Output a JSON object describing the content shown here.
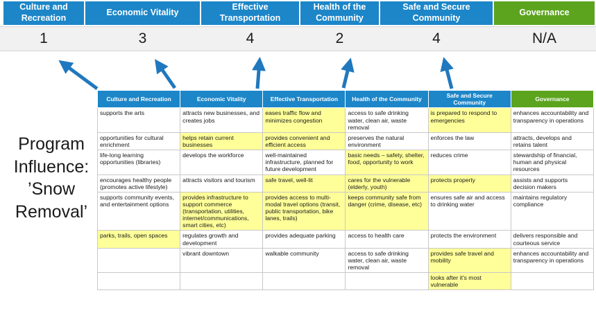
{
  "colors": {
    "header_blue": "#1C86C8",
    "header_green": "#5CA41E",
    "highlight": "#FFFF99",
    "arrow": "#2078BE",
    "score_bg": "#F1F1F1"
  },
  "title": {
    "text": "Program Influence: ’Snow Removal’"
  },
  "banner": {
    "columns": [
      {
        "id": "culture-recreation",
        "label": "Culture and Recreation",
        "score": "1"
      },
      {
        "id": "economic-vitality",
        "label": "Economic Vitality",
        "score": "3"
      },
      {
        "id": "effective-transportation",
        "label": "Effective Transportation",
        "score": "4"
      },
      {
        "id": "health-community",
        "label": "Health of the Community",
        "score": "2"
      },
      {
        "id": "safe-secure-community",
        "label": "Safe and Secure Community",
        "score": "4"
      },
      {
        "id": "governance",
        "label": "Governance",
        "score": "N/A"
      }
    ]
  },
  "table": {
    "headers": [
      "Culture and Recreation",
      "Economic Vitality",
      "Effective Transportation",
      "Health of the Community",
      "Safe and Secure Community",
      "Governance"
    ],
    "rows": [
      [
        {
          "t": "supports the arts",
          "h": false
        },
        {
          "t": "attracts new businesses, and creates jobs",
          "h": false
        },
        {
          "t": "eases traffic flow and minimizes congestion",
          "h": true
        },
        {
          "t": "access to safe drinking water, clean air, waste removal",
          "h": false
        },
        {
          "t": "is prepared to respond to emergencies",
          "h": true
        },
        {
          "t": "enhances accountability and transparency in operations",
          "h": false
        }
      ],
      [
        {
          "t": "opportunities for cultural enrichment",
          "h": false
        },
        {
          "t": "helps retain current businesses",
          "h": true
        },
        {
          "t": "provides convenient and efficient access",
          "h": true
        },
        {
          "t": "preserves the natural environment",
          "h": false
        },
        {
          "t": "enforces the law",
          "h": false
        },
        {
          "t": "attracts, develops and retains talent",
          "h": false
        }
      ],
      [
        {
          "t": "life-long learning opportunities (libraries)",
          "h": false
        },
        {
          "t": "develops the workforce",
          "h": false
        },
        {
          "t": "well-maintained infrastructure, planned for future development",
          "h": false
        },
        {
          "t": "basic needs – safety, shelter, food, opportunity to work",
          "h": true
        },
        {
          "t": "reduces crime",
          "h": false
        },
        {
          "t": "stewardship of financial, human and physical resources",
          "h": false
        }
      ],
      [
        {
          "t": "encourages healthy people (promotes active lifestyle)",
          "h": false
        },
        {
          "t": "attracts visitors and tourism",
          "h": false
        },
        {
          "t": "safe travel, well-lit",
          "h": true
        },
        {
          "t": "cares for the vulnerable (elderly, youth)",
          "h": true
        },
        {
          "t": "protects property",
          "h": true
        },
        {
          "t": "assists and supports decision makers",
          "h": false
        }
      ],
      [
        {
          "t": "supports community events, and entertainment options",
          "h": false
        },
        {
          "t": "provides infrastructure to support commerce (transportation, utilities, internet/communications, smart cities, etc)",
          "h": true
        },
        {
          "t": "provides access to multi-modal travel options (transit, public transportation, bike lanes, trails)",
          "h": true
        },
        {
          "t": "keeps community safe from danger (crime, disease, etc)",
          "h": true
        },
        {
          "t": "ensures safe air and access to drinking water",
          "h": false
        },
        {
          "t": "maintains regulatory compliance",
          "h": false
        }
      ],
      [
        {
          "t": "parks, trails, open spaces",
          "h": true
        },
        {
          "t": "regulates growth and development",
          "h": false
        },
        {
          "t": "provides adequate parking",
          "h": false
        },
        {
          "t": "access to health care",
          "h": false
        },
        {
          "t": "protects the environment",
          "h": false
        },
        {
          "t": "delivers responsible and courteous service",
          "h": false
        }
      ],
      [
        {
          "t": "",
          "h": false
        },
        {
          "t": "vibrant downtown",
          "h": false
        },
        {
          "t": "walkable community",
          "h": false
        },
        {
          "t": "access to safe drinking water, clean air, waste removal",
          "h": false
        },
        {
          "t": "provides safe travel and mobility",
          "h": true
        },
        {
          "t": "enhances accountability and transparency in operations",
          "h": false
        }
      ],
      [
        {
          "t": "",
          "h": false
        },
        {
          "t": "",
          "h": false
        },
        {
          "t": "",
          "h": false
        },
        {
          "t": "",
          "h": false
        },
        {
          "t": "looks after it's most vulnerable",
          "h": true
        },
        {
          "t": "",
          "h": false
        }
      ]
    ]
  }
}
